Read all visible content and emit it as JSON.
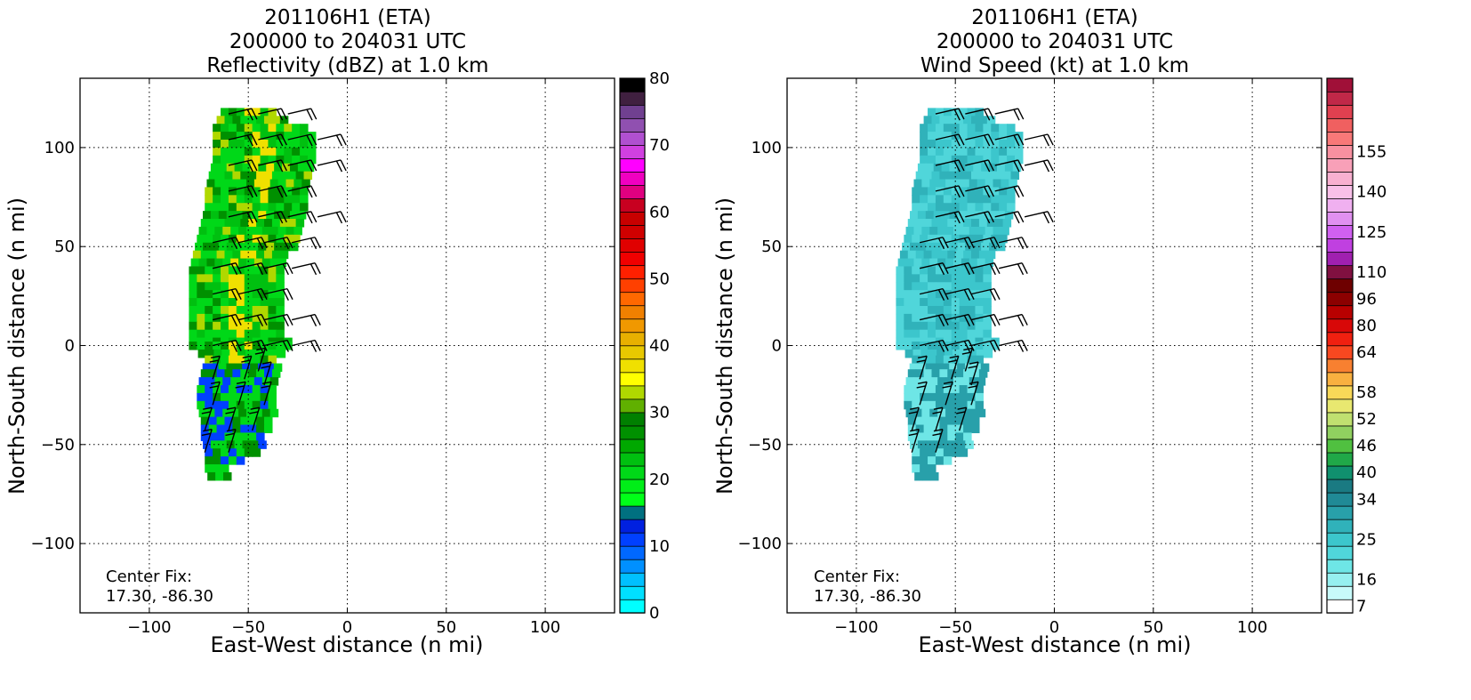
{
  "chart_data": [
    {
      "type": "heatmap",
      "title_lines": [
        "201106H1 (ETA)",
        "200000 to 204031 UTC",
        "Reflectivity (dBZ) at 1.0 km"
      ],
      "xlabel": "East-West distance (n mi)",
      "ylabel": "North-South distance (n mi)",
      "xlim": [
        -135,
        135
      ],
      "ylim": [
        -135,
        135
      ],
      "xticks": [
        -100,
        -50,
        0,
        50,
        100
      ],
      "yticks": [
        -100,
        -50,
        0,
        50,
        100
      ],
      "grid": true,
      "annotation": [
        "Center Fix:",
        "17.30, -86.30"
      ],
      "colorbar": {
        "label": "Reflectivity (dBZ)",
        "min": 0,
        "max": 80,
        "tick_labels": [
          "0",
          "10",
          "20",
          "30",
          "40",
          "50",
          "60",
          "70",
          "80"
        ],
        "tick_values": [
          0,
          10,
          20,
          30,
          40,
          50,
          60,
          70,
          80
        ],
        "colors": [
          "#00ffff",
          "#00e0ff",
          "#00c0ff",
          "#0090ff",
          "#0068ff",
          "#0040ff",
          "#0020e0",
          "#007080",
          "#00ff18",
          "#00ee18",
          "#00d818",
          "#00c010",
          "#00a800",
          "#009000",
          "#008000",
          "#60b000",
          "#b0d800",
          "#ffff00",
          "#f0e000",
          "#e8c800",
          "#e8b000",
          "#f09800",
          "#f08000",
          "#ff6800",
          "#ff4000",
          "#ff2000",
          "#f00000",
          "#e00000",
          "#d00000",
          "#c80000",
          "#c80020",
          "#e00080",
          "#f000c0",
          "#ff00ff",
          "#d040e0",
          "#b050d0",
          "#9050b0",
          "#704090",
          "#402040",
          "#000000"
        ]
      },
      "wind_barbs": [
        {
          "x": -60,
          "y": 117
        },
        {
          "x": -45,
          "y": 117
        },
        {
          "x": -30,
          "y": 117
        },
        {
          "x": -60,
          "y": 104
        },
        {
          "x": -45,
          "y": 104
        },
        {
          "x": -30,
          "y": 104
        },
        {
          "x": -15,
          "y": 104
        },
        {
          "x": -60,
          "y": 91
        },
        {
          "x": -45,
          "y": 91
        },
        {
          "x": -30,
          "y": 91
        },
        {
          "x": -15,
          "y": 91
        },
        {
          "x": -60,
          "y": 78
        },
        {
          "x": -45,
          "y": 78
        },
        {
          "x": -30,
          "y": 78
        },
        {
          "x": -60,
          "y": 65
        },
        {
          "x": -45,
          "y": 65
        },
        {
          "x": -30,
          "y": 65
        },
        {
          "x": -15,
          "y": 65
        },
        {
          "x": -68,
          "y": 52
        },
        {
          "x": -55,
          "y": 52
        },
        {
          "x": -42,
          "y": 52
        },
        {
          "x": -28,
          "y": 52
        },
        {
          "x": -68,
          "y": 39
        },
        {
          "x": -55,
          "y": 39
        },
        {
          "x": -42,
          "y": 39
        },
        {
          "x": -28,
          "y": 39
        },
        {
          "x": -68,
          "y": 26
        },
        {
          "x": -55,
          "y": 26
        },
        {
          "x": -42,
          "y": 26
        },
        {
          "x": -68,
          "y": 13
        },
        {
          "x": -55,
          "y": 13
        },
        {
          "x": -42,
          "y": 13
        },
        {
          "x": -28,
          "y": 13
        },
        {
          "x": -68,
          "y": 0
        },
        {
          "x": -55,
          "y": 0
        },
        {
          "x": -42,
          "y": 0
        },
        {
          "x": -28,
          "y": 0
        },
        {
          "x": -45,
          "y": -13
        },
        {
          "x": -68,
          "y": -17
        },
        {
          "x": -52,
          "y": -17
        },
        {
          "x": -42,
          "y": -20
        },
        {
          "x": -68,
          "y": -30
        },
        {
          "x": -55,
          "y": -30
        },
        {
          "x": -42,
          "y": -30
        },
        {
          "x": -72,
          "y": -43
        },
        {
          "x": -60,
          "y": -43
        },
        {
          "x": -48,
          "y": -43
        },
        {
          "x": -72,
          "y": -54
        },
        {
          "x": -60,
          "y": -54
        }
      ]
    },
    {
      "type": "heatmap",
      "title_lines": [
        "201106H1 (ETA)",
        "200000 to 204031 UTC",
        "Wind Speed (kt) at 1.0 km"
      ],
      "xlabel": "East-West distance (n mi)",
      "ylabel": "North-South distance (n mi)",
      "xlim": [
        -135,
        135
      ],
      "ylim": [
        -135,
        135
      ],
      "xticks": [
        -100,
        -50,
        0,
        50,
        100
      ],
      "yticks": [
        -100,
        -50,
        0,
        50,
        100
      ],
      "grid": true,
      "annotation": [
        "Center Fix:",
        "17.30, -86.30"
      ],
      "colorbar": {
        "label": "Wind Speed (kt)",
        "tick_labels": [
          "7",
          "16",
          "25",
          "34",
          "40",
          "46",
          "52",
          "58",
          "64",
          "80",
          "96",
          "110",
          "125",
          "140",
          "155"
        ],
        "colors": [
          "#ffffff",
          "#c8fafa",
          "#96f0f0",
          "#6ee6e6",
          "#50d6da",
          "#3cc6cc",
          "#30b2ba",
          "#28a0aa",
          "#208a96",
          "#1a7a82",
          "#10906e",
          "#20a848",
          "#50c040",
          "#90d060",
          "#c0e070",
          "#e8e870",
          "#f8d858",
          "#f8b040",
          "#f88030",
          "#f84820",
          "#f02010",
          "#d80808",
          "#b80000",
          "#8c0000",
          "#6e0000",
          "#801040",
          "#a020b0",
          "#c040e0",
          "#d060f0",
          "#e090f0",
          "#f0b0f0",
          "#f8c0e8",
          "#f8b0d0",
          "#f8a0b8",
          "#f890a0",
          "#f87878",
          "#f06060",
          "#e04050",
          "#c02848",
          "#a01038"
        ],
        "tick_index": [
          0,
          2,
          5,
          8,
          10,
          12,
          14,
          16,
          19,
          21,
          23,
          25,
          28,
          31,
          34
        ]
      },
      "wind_barbs": [
        {
          "x": -60,
          "y": 117
        },
        {
          "x": -45,
          "y": 117
        },
        {
          "x": -30,
          "y": 117
        },
        {
          "x": -60,
          "y": 104
        },
        {
          "x": -45,
          "y": 104
        },
        {
          "x": -30,
          "y": 104
        },
        {
          "x": -15,
          "y": 104
        },
        {
          "x": -60,
          "y": 91
        },
        {
          "x": -45,
          "y": 91
        },
        {
          "x": -30,
          "y": 91
        },
        {
          "x": -15,
          "y": 91
        },
        {
          "x": -60,
          "y": 78
        },
        {
          "x": -45,
          "y": 78
        },
        {
          "x": -30,
          "y": 78
        },
        {
          "x": -60,
          "y": 65
        },
        {
          "x": -45,
          "y": 65
        },
        {
          "x": -30,
          "y": 65
        },
        {
          "x": -15,
          "y": 65
        },
        {
          "x": -68,
          "y": 52
        },
        {
          "x": -55,
          "y": 52
        },
        {
          "x": -42,
          "y": 52
        },
        {
          "x": -28,
          "y": 52
        },
        {
          "x": -68,
          "y": 39
        },
        {
          "x": -55,
          "y": 39
        },
        {
          "x": -42,
          "y": 39
        },
        {
          "x": -28,
          "y": 39
        },
        {
          "x": -68,
          "y": 26
        },
        {
          "x": -55,
          "y": 26
        },
        {
          "x": -42,
          "y": 26
        },
        {
          "x": -68,
          "y": 13
        },
        {
          "x": -55,
          "y": 13
        },
        {
          "x": -42,
          "y": 13
        },
        {
          "x": -28,
          "y": 13
        },
        {
          "x": -68,
          "y": 0
        },
        {
          "x": -55,
          "y": 0
        },
        {
          "x": -42,
          "y": 0
        },
        {
          "x": -28,
          "y": 0
        },
        {
          "x": -45,
          "y": -13
        },
        {
          "x": -68,
          "y": -17
        },
        {
          "x": -52,
          "y": -17
        },
        {
          "x": -42,
          "y": -20
        },
        {
          "x": -68,
          "y": -30
        },
        {
          "x": -55,
          "y": -30
        },
        {
          "x": -42,
          "y": -30
        },
        {
          "x": -72,
          "y": -43
        },
        {
          "x": -60,
          "y": -43
        },
        {
          "x": -48,
          "y": -43
        },
        {
          "x": -72,
          "y": -54
        },
        {
          "x": -60,
          "y": -54
        }
      ]
    }
  ]
}
